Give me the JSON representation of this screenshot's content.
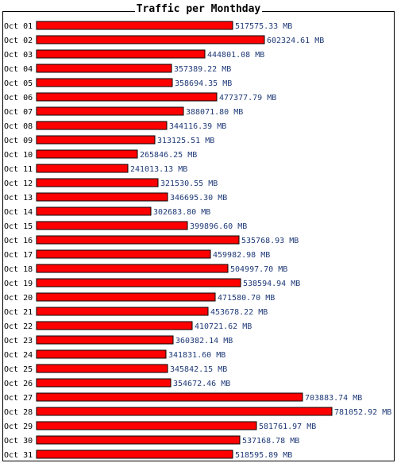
{
  "colors": {
    "bar_fill": "#ff0000",
    "bar_stroke": "#000000",
    "value_text": "#1f3a78",
    "label_text": "#000000"
  },
  "chart_data": {
    "type": "bar",
    "orientation": "horizontal",
    "title": "Traffic per Monthday",
    "unit": "MB",
    "xlim": [
      0,
      781052.92
    ],
    "grid": false,
    "categories": [
      "Oct 01",
      "Oct 02",
      "Oct 03",
      "Oct 04",
      "Oct 05",
      "Oct 06",
      "Oct 07",
      "Oct 08",
      "Oct 09",
      "Oct 10",
      "Oct 11",
      "Oct 12",
      "Oct 13",
      "Oct 14",
      "Oct 15",
      "Oct 16",
      "Oct 17",
      "Oct 18",
      "Oct 19",
      "Oct 20",
      "Oct 21",
      "Oct 22",
      "Oct 23",
      "Oct 24",
      "Oct 25",
      "Oct 26",
      "Oct 27",
      "Oct 28",
      "Oct 29",
      "Oct 30",
      "Oct 31"
    ],
    "values": [
      517575.33,
      602324.61,
      444801.08,
      357389.22,
      358694.35,
      477377.79,
      388071.8,
      344116.39,
      313125.51,
      265846.25,
      241013.13,
      321530.55,
      346695.3,
      302683.8,
      399896.6,
      535768.93,
      459982.98,
      504997.7,
      538594.94,
      471580.7,
      453678.22,
      410721.62,
      360382.14,
      341831.6,
      345842.15,
      354672.46,
      703883.74,
      781052.92,
      581761.97,
      537168.78,
      518595.89
    ],
    "value_labels": [
      "517575.33 MB",
      "602324.61 MB",
      "444801.08 MB",
      "357389.22 MB",
      "358694.35 MB",
      "477377.79 MB",
      "388071.80 MB",
      "344116.39 MB",
      "313125.51 MB",
      "265846.25 MB",
      "241013.13 MB",
      "321530.55 MB",
      "346695.30 MB",
      "302683.80 MB",
      "399896.60 MB",
      "535768.93 MB",
      "459982.98 MB",
      "504997.70 MB",
      "538594.94 MB",
      "471580.70 MB",
      "453678.22 MB",
      "410721.62 MB",
      "360382.14 MB",
      "341831.60 MB",
      "345842.15 MB",
      "354672.46 MB",
      "703883.74 MB",
      "781052.92 MB",
      "581761.97 MB",
      "537168.78 MB",
      "518595.89 MB"
    ]
  }
}
